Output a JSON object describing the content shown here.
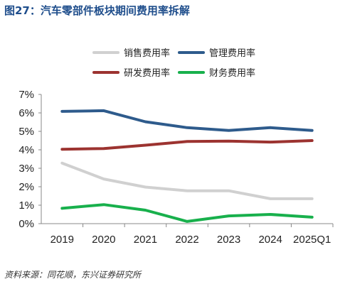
{
  "title": "图27：汽车零部件板块期间费用率拆解",
  "source": "资料来源：同花顺，东兴证券研究所",
  "chart_data": {
    "type": "line",
    "categories": [
      "2019",
      "2020",
      "2021",
      "2022",
      "2023",
      "2024",
      "2025Q1"
    ],
    "ylim": [
      0,
      7
    ],
    "yticks": [
      "0%",
      "1%",
      "2%",
      "3%",
      "4%",
      "5%",
      "6%",
      "7%"
    ],
    "grid": false,
    "legend_position": "top",
    "series": [
      {
        "name": "销售费用率",
        "color": "#d0d0d0",
        "values": [
          3.28,
          2.42,
          1.98,
          1.78,
          1.78,
          1.35,
          1.35
        ]
      },
      {
        "name": "管理费用率",
        "color": "#2e5b8c",
        "values": [
          6.08,
          6.12,
          5.52,
          5.2,
          5.05,
          5.2,
          5.05
        ]
      },
      {
        "name": "研发费用率",
        "color": "#9c3330",
        "values": [
          4.03,
          4.07,
          4.25,
          4.45,
          4.47,
          4.42,
          4.5
        ]
      },
      {
        "name": "财务费用率",
        "color": "#18b04c",
        "values": [
          0.83,
          1.03,
          0.73,
          0.12,
          0.42,
          0.5,
          0.35
        ]
      }
    ]
  }
}
